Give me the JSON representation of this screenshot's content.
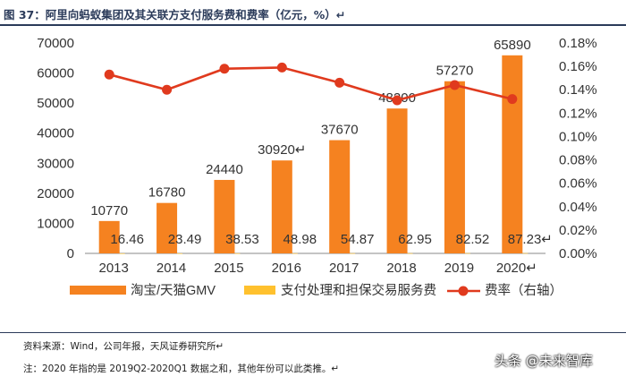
{
  "header": {
    "title": "图 37：阿里向蚂蚁集团及其关联方支付服务费和费率（亿元，%）↵"
  },
  "footer": {
    "source": "资料来源：Wind，公司年报，天风证券研究所↵",
    "note": "注：2020 年指的是 2019Q2-2020Q1 数据之和，其他年份可以此类推。↵",
    "watermark": "头条 @未来智库"
  },
  "colors": {
    "gmv": "#F58220",
    "fee": "#FFC12E",
    "rate": "#E03A1E",
    "axis": "#888888",
    "text": "#333333"
  },
  "chart_data": {
    "type": "bar",
    "categories": [
      "2013",
      "2014",
      "2015",
      "2016",
      "2017",
      "2018",
      "2019",
      "2020↵"
    ],
    "series": [
      {
        "name": "淘宝/天猫GMV",
        "type": "bar",
        "axis": "left",
        "values": [
          10770,
          16780,
          24440,
          30920,
          37670,
          48200,
          57270,
          65890
        ],
        "labels": [
          "10770",
          "16780",
          "24440",
          "30920↵",
          "37670",
          "48200",
          "57270",
          "65890"
        ]
      },
      {
        "name": "支付处理和担保交易服务费",
        "type": "bar",
        "axis": "left",
        "values": [
          16.46,
          23.49,
          38.53,
          48.98,
          54.87,
          62.95,
          82.52,
          87.23
        ],
        "labels": [
          "16.46",
          "23.49",
          "38.53",
          "48.98",
          "54.87",
          "62.95",
          "82.52",
          "87.23↵"
        ]
      },
      {
        "name": "费率（右轴）",
        "type": "line",
        "axis": "right",
        "values": [
          0.153,
          0.14,
          0.158,
          0.159,
          0.146,
          0.131,
          0.144,
          0.132
        ]
      }
    ],
    "y_left": {
      "ylim": [
        0,
        70000
      ],
      "ticks": [
        0,
        10000,
        20000,
        30000,
        40000,
        50000,
        60000,
        70000
      ],
      "tick_labels": [
        "0",
        "10000",
        "20000",
        "30000",
        "40000",
        "50000",
        "60000",
        "70000"
      ]
    },
    "y_right": {
      "ylim": [
        0,
        0.18
      ],
      "ticks": [
        0,
        0.02,
        0.04,
        0.06,
        0.08,
        0.1,
        0.12,
        0.14,
        0.16,
        0.18
      ],
      "tick_labels": [
        "0.00%",
        "0.02%",
        "0.04%",
        "0.06%",
        "0.08%",
        "0.10%",
        "0.12%",
        "0.14%",
        "0.16%",
        "0.18%"
      ]
    },
    "xlabel": "",
    "ylabel": "",
    "grid": false,
    "legend_position": "bottom"
  }
}
